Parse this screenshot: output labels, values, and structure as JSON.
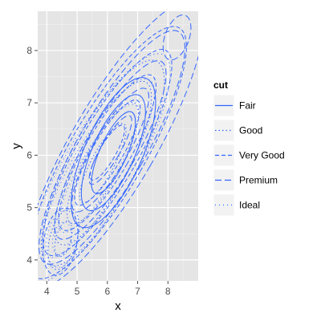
{
  "chart_data": {
    "type": "line",
    "subtype": "density-2d-contour",
    "title": "",
    "xlabel": "x",
    "ylabel": "y",
    "xlim": [
      3.7,
      9.0
    ],
    "ylim": [
      3.6,
      8.75
    ],
    "x_ticks": [
      4,
      5,
      6,
      7,
      8
    ],
    "y_ticks": [
      4,
      5,
      6,
      7,
      8
    ],
    "grid": true,
    "panel_background": "#e5e5e5",
    "grid_color": "#ffffff",
    "line_color": "#3366ff",
    "legend": {
      "title": "cut",
      "placement": "right",
      "entries": [
        {
          "label": "Fair",
          "dash": "solid"
        },
        {
          "label": "Good",
          "dash": "dotted"
        },
        {
          "label": "Very Good",
          "dash": "dashed"
        },
        {
          "label": "Premium",
          "dash": "longdash"
        },
        {
          "label": "Ideal",
          "dash": "dotted-sparse"
        }
      ]
    },
    "series": [
      {
        "name": "Fair",
        "dash": "solid",
        "levels": [
          {
            "cx": 6.2,
            "cy": 6.05,
            "rx": 0.95,
            "ry": 1.55,
            "rot": 24
          },
          {
            "cx": 6.2,
            "cy": 6.05,
            "rx": 0.7,
            "ry": 1.2,
            "rot": 24
          },
          {
            "cx": 6.2,
            "cy": 6.05,
            "rx": 0.45,
            "ry": 0.85,
            "rot": 24
          }
        ]
      },
      {
        "name": "Good",
        "dash": "dotted",
        "levels": [
          {
            "cx": 5.85,
            "cy": 5.85,
            "rx": 1.1,
            "ry": 2.2,
            "rot": 28
          },
          {
            "cx": 5.85,
            "cy": 5.85,
            "rx": 0.85,
            "ry": 1.75,
            "rot": 28
          },
          {
            "cx": 5.85,
            "cy": 5.85,
            "rx": 0.6,
            "ry": 1.3,
            "rot": 28
          },
          {
            "cx": 5.85,
            "cy": 5.85,
            "rx": 0.38,
            "ry": 0.85,
            "rot": 28
          },
          {
            "cx": 4.55,
            "cy": 4.4,
            "rx": 0.45,
            "ry": 0.6,
            "rot": 15
          },
          {
            "cx": 4.55,
            "cy": 4.4,
            "rx": 0.25,
            "ry": 0.35,
            "rot": 15
          }
        ]
      },
      {
        "name": "Very Good",
        "dash": "dashed",
        "levels": [
          {
            "cx": 6.0,
            "cy": 6.05,
            "rx": 1.25,
            "ry": 2.75,
            "rot": 30
          },
          {
            "cx": 6.0,
            "cy": 6.05,
            "rx": 1.0,
            "ry": 2.25,
            "rot": 30
          },
          {
            "cx": 6.0,
            "cy": 6.05,
            "rx": 0.75,
            "ry": 1.7,
            "rot": 30
          },
          {
            "cx": 6.0,
            "cy": 6.05,
            "rx": 0.5,
            "ry": 1.15,
            "rot": 30
          },
          {
            "cx": 6.0,
            "cy": 6.05,
            "rx": 0.27,
            "ry": 0.6,
            "rot": 30
          },
          {
            "cx": 4.45,
            "cy": 4.35,
            "rx": 0.55,
            "ry": 0.65,
            "rot": 10
          }
        ]
      },
      {
        "name": "Premium",
        "dash": "longdash",
        "levels": [
          {
            "cx": 6.2,
            "cy": 6.2,
            "rx": 1.4,
            "ry": 3.15,
            "rot": 30
          },
          {
            "cx": 6.15,
            "cy": 6.15,
            "rx": 1.12,
            "ry": 2.55,
            "rot": 30
          },
          {
            "cx": 6.1,
            "cy": 6.1,
            "rx": 0.85,
            "ry": 1.95,
            "rot": 30
          },
          {
            "cx": 6.1,
            "cy": 6.1,
            "rx": 0.58,
            "ry": 1.35,
            "rot": 30
          },
          {
            "cx": 6.1,
            "cy": 6.1,
            "rx": 0.32,
            "ry": 0.75,
            "rot": 30
          },
          {
            "cx": 8.3,
            "cy": 8.25,
            "rx": 0.4,
            "ry": 0.45,
            "rot": 20
          }
        ]
      },
      {
        "name": "Ideal",
        "dash": "dotted-sparse",
        "levels": [
          {
            "cx": 5.7,
            "cy": 5.75,
            "rx": 1.15,
            "ry": 2.5,
            "rot": 30
          },
          {
            "cx": 5.7,
            "cy": 5.75,
            "rx": 0.88,
            "ry": 1.95,
            "rot": 30
          },
          {
            "cx": 5.7,
            "cy": 5.75,
            "rx": 0.6,
            "ry": 1.4,
            "rot": 30
          },
          {
            "cx": 4.5,
            "cy": 4.4,
            "rx": 0.5,
            "ry": 0.55,
            "rot": 10
          },
          {
            "cx": 4.5,
            "cy": 4.4,
            "rx": 0.3,
            "ry": 0.33,
            "rot": 10
          }
        ]
      }
    ]
  }
}
